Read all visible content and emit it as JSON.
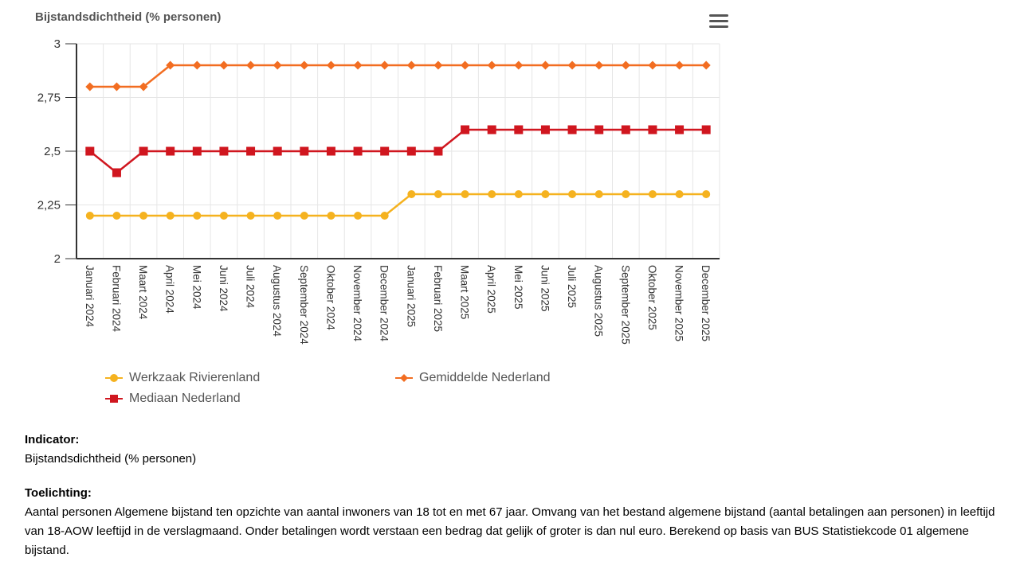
{
  "chart_data": {
    "type": "line",
    "title": "Bijstandsdichtheid (% personen)",
    "categories": [
      "Januari 2024",
      "Februari 2024",
      "Maart 2024",
      "April 2024",
      "Mei 2024",
      "Juni 2024",
      "Juli 2024",
      "Augustus 2024",
      "September 2024",
      "Oktober 2024",
      "November 2024",
      "December 2024",
      "Januari 2025",
      "Februari 2025",
      "Maart 2025",
      "April 2025",
      "Mei 2025",
      "Juni 2025",
      "Juli 2025",
      "Augustus 2025",
      "September 2025",
      "Oktober 2025",
      "November 2025",
      "December 2025"
    ],
    "ylim": [
      2,
      3
    ],
    "yticks": [
      2,
      2.25,
      2.5,
      2.75,
      3
    ],
    "ytick_labels": [
      "2",
      "2,25",
      "2,5",
      "2,75",
      "3"
    ],
    "grid": true,
    "legend": "bottom",
    "series": [
      {
        "name": "Werkzaak Rivierenland",
        "color": "#f5b21f",
        "marker": "circle",
        "values": [
          2.2,
          2.2,
          2.2,
          2.2,
          2.2,
          2.2,
          2.2,
          2.2,
          2.2,
          2.2,
          2.2,
          2.2,
          2.3,
          2.3,
          2.3,
          2.3,
          2.3,
          2.3,
          2.3,
          2.3,
          2.3,
          2.3,
          2.3,
          2.3
        ]
      },
      {
        "name": "Mediaan Nederland",
        "color": "#d0161f",
        "marker": "square",
        "values": [
          2.5,
          2.4,
          2.5,
          2.5,
          2.5,
          2.5,
          2.5,
          2.5,
          2.5,
          2.5,
          2.5,
          2.5,
          2.5,
          2.5,
          2.6,
          2.6,
          2.6,
          2.6,
          2.6,
          2.6,
          2.6,
          2.6,
          2.6,
          2.6
        ]
      },
      {
        "name": "Gemiddelde Nederland",
        "color": "#f26d21",
        "marker": "diamond",
        "values": [
          2.8,
          2.8,
          2.8,
          2.9,
          2.9,
          2.9,
          2.9,
          2.9,
          2.9,
          2.9,
          2.9,
          2.9,
          2.9,
          2.9,
          2.9,
          2.9,
          2.9,
          2.9,
          2.9,
          2.9,
          2.9,
          2.9,
          2.9,
          2.9
        ]
      }
    ]
  },
  "menu_icon": "hamburger-menu-icon",
  "info": {
    "indicator_label": "Indicator:",
    "indicator_value": "Bijstandsdichtheid (% personen)",
    "toelichting_label": "Toelichting:",
    "toelichting_text": "Aantal personen Algemene bijstand ten opzichte van aantal inwoners van 18 tot en met 67 jaar. Omvang van het bestand algemene bijstand (aantal betalingen aan personen) in leeftijd van 18-AOW leeftijd in de verslagmaand. Onder betalingen wordt verstaan een bedrag dat gelijk of groter is dan nul euro. Berekend op basis van BUS Statistiekcode 01 algemene bijstand."
  }
}
